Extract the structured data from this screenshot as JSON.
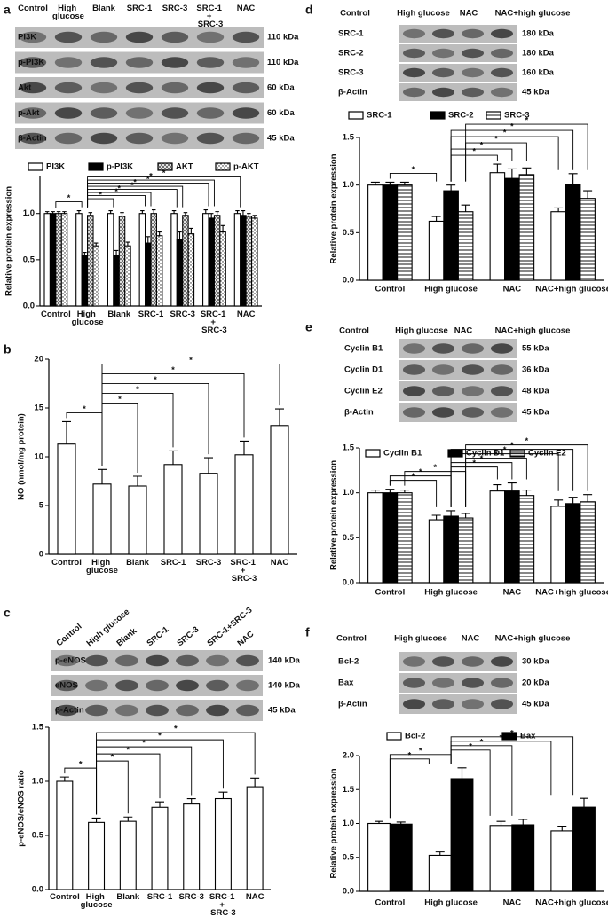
{
  "chart_data": [
    {
      "type": "bar",
      "label": "a",
      "blot": {
        "lanes": [
          "Control",
          "High glucose",
          "Blank",
          "SRC-1",
          "SRC-3",
          "SRC-1 + SRC-3",
          "NAC"
        ],
        "rows": [
          {
            "name": "PI3K",
            "size": "110 kDa"
          },
          {
            "name": "p-PI3K",
            "size": "110 kDa"
          },
          {
            "name": "Akt",
            "size": "60 kDa"
          },
          {
            "name": "p-Akt",
            "size": "60 kDa"
          },
          {
            "name": "β-Actin",
            "size": "45 kDa"
          }
        ]
      },
      "y_label": "Relative protein expression",
      "categories": [
        "Control",
        "High glucose",
        "Blank",
        "SRC-1",
        "SRC-3",
        "SRC-1 + SRC-3",
        "NAC"
      ],
      "series": [
        {
          "name": "PI3K",
          "color": "#ffffff",
          "pattern": "none",
          "values": [
            1.0,
            1.0,
            1.0,
            1.0,
            1.0,
            1.0,
            1.0
          ],
          "errors": [
            0.02,
            0.03,
            0.03,
            0.03,
            0.03,
            0.04,
            0.03
          ]
        },
        {
          "name": "p-PI3K",
          "color": "#000000",
          "pattern": "none",
          "values": [
            1.0,
            0.55,
            0.55,
            0.68,
            0.72,
            0.95,
            0.98
          ],
          "errors": [
            0.02,
            0.03,
            0.05,
            0.07,
            0.08,
            0.05,
            0.05
          ]
        },
        {
          "name": "AKT",
          "color": "#ffffff",
          "pattern": "hatch",
          "values": [
            1.0,
            0.98,
            0.97,
            1.0,
            0.98,
            0.98,
            0.97
          ],
          "errors": [
            0.02,
            0.03,
            0.04,
            0.04,
            0.03,
            0.04,
            0.03
          ]
        },
        {
          "name": "p-AKT",
          "color": "#ffffff",
          "pattern": "dots",
          "values": [
            1.0,
            0.65,
            0.65,
            0.76,
            0.78,
            0.8,
            0.95
          ],
          "errors": [
            0.02,
            0.03,
            0.04,
            0.04,
            0.06,
            0.07,
            0.03
          ]
        }
      ],
      "ylim": [
        0,
        1.4
      ],
      "yticks": [
        {
          "value": 0,
          "label": "0.0"
        },
        {
          "value": 0.5,
          "label": "0.5"
        },
        {
          "value": 1,
          "label": "1.0"
        }
      ],
      "brackets": [
        {
          "from": "Control",
          "to": "High glucose",
          "label": "*"
        },
        {
          "from": "High glucose",
          "to": "Blank",
          "label": "*"
        },
        {
          "from": "High glucose",
          "to": "SRC-1",
          "label": "*"
        },
        {
          "from": "High glucose",
          "to": "SRC-1",
          "label": "*"
        },
        {
          "from": "High glucose",
          "to": "SRC-3",
          "label": "*"
        },
        {
          "from": "High glucose",
          "to": "SRC-3",
          "label": "*"
        },
        {
          "from": "High glucose",
          "to": "SRC-1 + SRC-3",
          "label": "*"
        },
        {
          "from": "High glucose",
          "to": "SRC-1 + SRC-3",
          "label": "*"
        },
        {
          "from": "High glucose",
          "to": "NAC",
          "label": "*"
        }
      ]
    },
    {
      "type": "bar",
      "label": "b",
      "y_label": "NO (nmol/mg protein)",
      "categories": [
        "Control",
        "High glucose",
        "Blank",
        "SRC-1",
        "SRC-3",
        "SRC-1 + SRC-3",
        "NAC"
      ],
      "color": "#ffffff",
      "values": [
        11.3,
        7.2,
        7.0,
        9.2,
        8.3,
        10.2,
        13.2
      ],
      "errors": [
        2.3,
        1.5,
        1.0,
        1.4,
        1.6,
        1.4,
        1.7
      ],
      "ylim": [
        0,
        20
      ],
      "yticks": [
        0,
        5,
        10,
        15,
        20
      ],
      "brackets": [
        {
          "from": "Control",
          "to": "High glucose",
          "label": "*"
        },
        {
          "from": "High glucose",
          "to": "Blank",
          "label": "*"
        },
        {
          "from": "High glucose",
          "to": "SRC-1",
          "label": "*"
        },
        {
          "from": "High glucose",
          "to": "SRC-3",
          "label": "*"
        },
        {
          "from": "High glucose",
          "to": "SRC-1 + SRC-3",
          "label": "*"
        },
        {
          "from": "High glucose",
          "to": "NAC",
          "label": "*"
        }
      ]
    },
    {
      "type": "bar",
      "label": "c",
      "blot": {
        "lanes": [
          "Control",
          "High glucose",
          "Blank",
          "SRC-1",
          "SRC-3",
          "SRC-1+SRC-3",
          "NAC"
        ],
        "rows": [
          {
            "name": "p-eNOS",
            "size": "140 kDa"
          },
          {
            "name": "eNOS",
            "size": "140 kDa"
          },
          {
            "name": "β-Actin",
            "size": "45 kDa"
          }
        ]
      },
      "y_label": "p-eNOS/eNOS ratio",
      "categories": [
        "Control",
        "High glucose",
        "Blank",
        "SRC-1",
        "SRC-3",
        "SRC-1 + SRC-3",
        "NAC"
      ],
      "color": "#ffffff",
      "values": [
        1.0,
        0.62,
        0.63,
        0.76,
        0.79,
        0.84,
        0.95
      ],
      "errors": [
        0.04,
        0.04,
        0.04,
        0.05,
        0.05,
        0.06,
        0.08
      ],
      "ylim": [
        0,
        1.5
      ],
      "yticks": [
        {
          "value": 0,
          "label": "0.0"
        },
        {
          "value": 0.5,
          "label": "0.5"
        },
        {
          "value": 1,
          "label": "1.0"
        },
        {
          "value": 1.5,
          "label": "1.5"
        }
      ],
      "brackets": [
        {
          "from": "Control",
          "to": "High glucose",
          "label": "*"
        },
        {
          "from": "High glucose",
          "to": "Blank",
          "label": "*"
        },
        {
          "from": "High glucose",
          "to": "SRC-1",
          "label": "*"
        },
        {
          "from": "High glucose",
          "to": "SRC-3",
          "label": "*"
        },
        {
          "from": "High glucose",
          "to": "SRC-1 + SRC-3",
          "label": "*"
        },
        {
          "from": "High glucose",
          "to": "NAC",
          "label": "*"
        }
      ]
    },
    {
      "type": "bar",
      "label": "d",
      "blot": {
        "lanes": [
          "Control",
          "High glucose",
          "NAC",
          "NAC+high glucose"
        ],
        "rows": [
          {
            "name": "SRC-1",
            "size": "180 kDa"
          },
          {
            "name": "SRC-2",
            "size": "180 kDa"
          },
          {
            "name": "SRC-3",
            "size": "160 kDa"
          },
          {
            "name": "β-Actin",
            "size": "45 kDa"
          }
        ]
      },
      "y_label": "Relative protein expression",
      "categories": [
        "Control",
        "High glucose",
        "NAC",
        "NAC+high glucose"
      ],
      "series": [
        {
          "name": "SRC-1",
          "color": "#ffffff",
          "pattern": "none",
          "values": [
            1.0,
            0.62,
            1.13,
            0.72
          ],
          "errors": [
            0.03,
            0.05,
            0.09,
            0.04
          ]
        },
        {
          "name": "SRC-2",
          "color": "#000000",
          "pattern": "none",
          "values": [
            1.0,
            0.94,
            1.07,
            1.01
          ],
          "errors": [
            0.03,
            0.06,
            0.1,
            0.11
          ]
        },
        {
          "name": "SRC-3",
          "color": "#ffffff",
          "pattern": "stripes",
          "values": [
            1.0,
            0.72,
            1.11,
            0.86
          ],
          "errors": [
            0.03,
            0.07,
            0.07,
            0.08
          ]
        }
      ],
      "ylim": [
        0,
        1.5
      ],
      "yticks": [
        {
          "value": 0,
          "label": "0.0"
        },
        {
          "value": 0.5,
          "label": "0.5"
        },
        {
          "value": 1,
          "label": "1.0"
        },
        {
          "value": 1.5,
          "label": "1.5"
        }
      ],
      "brackets": [
        {
          "from": "Control",
          "to": "High glucose",
          "label": "*"
        },
        {
          "from": "High glucose",
          "to": "NAC",
          "label": "*"
        },
        {
          "from": "High glucose",
          "to": "NAC",
          "label": "*"
        },
        {
          "from": "High glucose",
          "to": "NAC",
          "label": "*"
        },
        {
          "from": "High glucose",
          "to": "NAC+high glucose",
          "label": "*"
        },
        {
          "from": "High glucose",
          "to": "NAC+high glucose",
          "label": "*"
        },
        {
          "from": "High glucose",
          "to": "NAC+high glucose",
          "label": "*"
        }
      ]
    },
    {
      "type": "bar",
      "label": "e",
      "blot": {
        "lanes": [
          "Control",
          "High glucose",
          "NAC",
          "NAC+high glucose"
        ],
        "rows": [
          {
            "name": "Cyclin B1",
            "size": "55 kDa"
          },
          {
            "name": "Cyclin D1",
            "size": "36 kDa"
          },
          {
            "name": "Cyclin E2",
            "size": "48 kDa"
          },
          {
            "name": "β-Actin",
            "size": "45 kDa"
          }
        ]
      },
      "y_label": "Relative protein expression",
      "categories": [
        "Control",
        "High glucose",
        "NAC",
        "NAC+high glucose"
      ],
      "series": [
        {
          "name": "Cyclin B1",
          "color": "#ffffff",
          "pattern": "none",
          "values": [
            1.0,
            0.7,
            1.02,
            0.85
          ],
          "errors": [
            0.03,
            0.05,
            0.07,
            0.07
          ]
        },
        {
          "name": "Cyclin D1",
          "color": "#000000",
          "pattern": "none",
          "values": [
            1.0,
            0.74,
            1.02,
            0.88
          ],
          "errors": [
            0.04,
            0.06,
            0.09,
            0.07
          ]
        },
        {
          "name": "Cyclin E2",
          "color": "#ffffff",
          "pattern": "stripes",
          "values": [
            1.0,
            0.72,
            0.97,
            0.9
          ],
          "errors": [
            0.03,
            0.05,
            0.06,
            0.08
          ]
        }
      ],
      "ylim": [
        0,
        1.5
      ],
      "yticks": [
        {
          "value": 0,
          "label": "0.0"
        },
        {
          "value": 0.5,
          "label": "0.5"
        },
        {
          "value": 1,
          "label": "1.0"
        },
        {
          "value": 1.5,
          "label": "1.5"
        }
      ],
      "brackets": [
        {
          "from": "Control",
          "to": "High glucose",
          "label": "*"
        },
        {
          "from": "Control",
          "to": "High glucose",
          "label": "*"
        },
        {
          "from": "Control",
          "to": "High glucose",
          "label": "*"
        },
        {
          "from": "High glucose",
          "to": "NAC",
          "label": "*"
        },
        {
          "from": "High glucose",
          "to": "NAC",
          "label": "*"
        },
        {
          "from": "High glucose",
          "to": "NAC",
          "label": "*"
        },
        {
          "from": "High glucose",
          "to": "NAC+high glucose",
          "label": "*"
        },
        {
          "from": "High glucose",
          "to": "NAC+high glucose",
          "label": "*"
        },
        {
          "from": "High glucose",
          "to": "NAC+high glucose",
          "label": "*"
        }
      ]
    },
    {
      "type": "bar",
      "label": "f",
      "blot": {
        "lanes": [
          "Control",
          "High glucose",
          "NAC",
          "NAC+high glucose"
        ],
        "rows": [
          {
            "name": "Bcl-2",
            "size": "30 kDa"
          },
          {
            "name": "Bax",
            "size": "20 kDa"
          },
          {
            "name": "β-Actin",
            "size": "45 kDa"
          }
        ]
      },
      "y_label": "Relative protein expression",
      "categories": [
        "Control",
        "High glucose",
        "NAC",
        "NAC+high glucose"
      ],
      "series": [
        {
          "name": "Bcl-2",
          "color": "#ffffff",
          "pattern": "none",
          "values": [
            1.0,
            0.53,
            0.97,
            0.89
          ],
          "errors": [
            0.03,
            0.05,
            0.06,
            0.07
          ]
        },
        {
          "name": "Bax",
          "color": "#000000",
          "pattern": "none",
          "values": [
            0.99,
            1.66,
            0.98,
            1.24
          ],
          "errors": [
            0.03,
            0.16,
            0.08,
            0.13
          ]
        }
      ],
      "ylim": [
        0,
        2.0
      ],
      "yticks": [
        {
          "value": 0,
          "label": "0.0"
        },
        {
          "value": 0.5,
          "label": "0.5"
        },
        {
          "value": 1,
          "label": "1.0"
        },
        {
          "value": 1.5,
          "label": "1.5"
        },
        {
          "value": 2,
          "label": "2.0"
        }
      ],
      "brackets": [
        {
          "from": "Control",
          "to": "High glucose",
          "label": "*"
        },
        {
          "from": "Control",
          "to": "High glucose",
          "label": "*"
        },
        {
          "from": "High glucose",
          "to": "NAC",
          "label": "*"
        },
        {
          "from": "High glucose",
          "to": "NAC",
          "label": "*"
        },
        {
          "from": "High glucose",
          "to": "NAC+high glucose",
          "label": "*"
        },
        {
          "from": "High glucose",
          "to": "NAC+high glucose",
          "label": "*"
        }
      ]
    }
  ]
}
